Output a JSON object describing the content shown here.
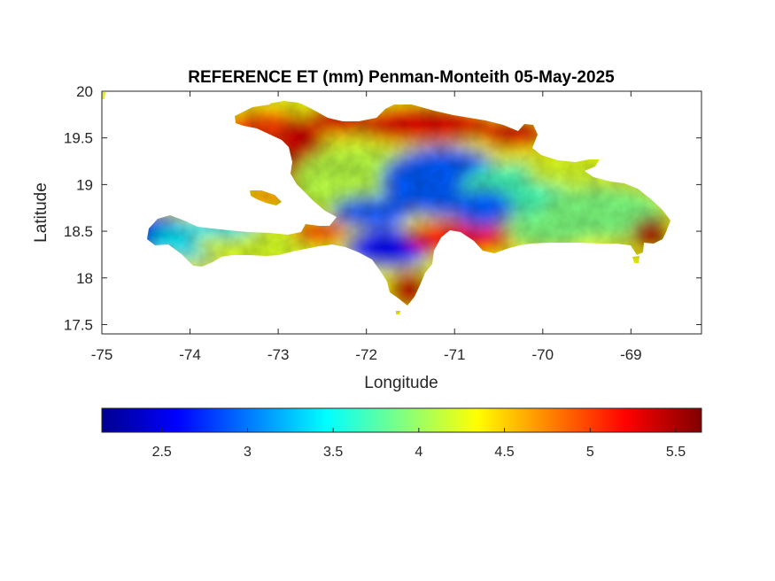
{
  "chart_data": {
    "type": "heatmap",
    "title": "REFERENCE ET (mm) Penman-Monteith 05-May-2025",
    "xlabel": "Longitude",
    "ylabel": "Latitude",
    "xlim": [
      -75,
      -68.2
    ],
    "ylim": [
      17.4,
      20
    ],
    "xticks": [
      "-75",
      "-74",
      "-73",
      "-72",
      "-71",
      "-70",
      "-69"
    ],
    "yticks": [
      "17.5",
      "18",
      "18.5",
      "19",
      "19.5",
      "20"
    ],
    "colormap": "jet",
    "clim": [
      2.15,
      5.65
    ],
    "colorbar_ticks": [
      "2.5",
      "3",
      "3.5",
      "4",
      "4.5",
      "5",
      "5.5"
    ],
    "colorbar_location": "southoutside",
    "box": "on",
    "grid": "off",
    "region_values": [
      {
        "region": "Haiti southern peninsula, far west (Tiburon)",
        "value": 2.5
      },
      {
        "region": "Haiti southern peninsula, central",
        "value": 3.4
      },
      {
        "region": "Haiti southern peninsula, eastern part",
        "value": 4.2
      },
      {
        "region": "Haiti northwest peninsula",
        "value": 5.0
      },
      {
        "region": "Gonave Gulf west coast of Haiti",
        "value": 5.4
      },
      {
        "region": "Haiti central plateau",
        "value": 4.1
      },
      {
        "region": "Northern coast",
        "value": 5.3
      },
      {
        "region": "Cordillera Central (Dominican Republic)",
        "value": 2.9
      },
      {
        "region": "Sierra de Bahoruco",
        "value": 2.6
      },
      {
        "region": "Enriquillo basin / southwest DR",
        "value": 5.2
      },
      {
        "region": "Barahona peninsula south tip",
        "value": 5.4
      },
      {
        "region": "Cibao valley",
        "value": 3.7
      },
      {
        "region": "Eastern plains (Dominican Republic)",
        "value": 3.9
      },
      {
        "region": "Southeast coast near -69",
        "value": 5.5
      },
      {
        "region": "Samana peninsula",
        "value": 4.2
      },
      {
        "region": "Ile a Vache / small islands",
        "value": 4.8
      }
    ]
  }
}
